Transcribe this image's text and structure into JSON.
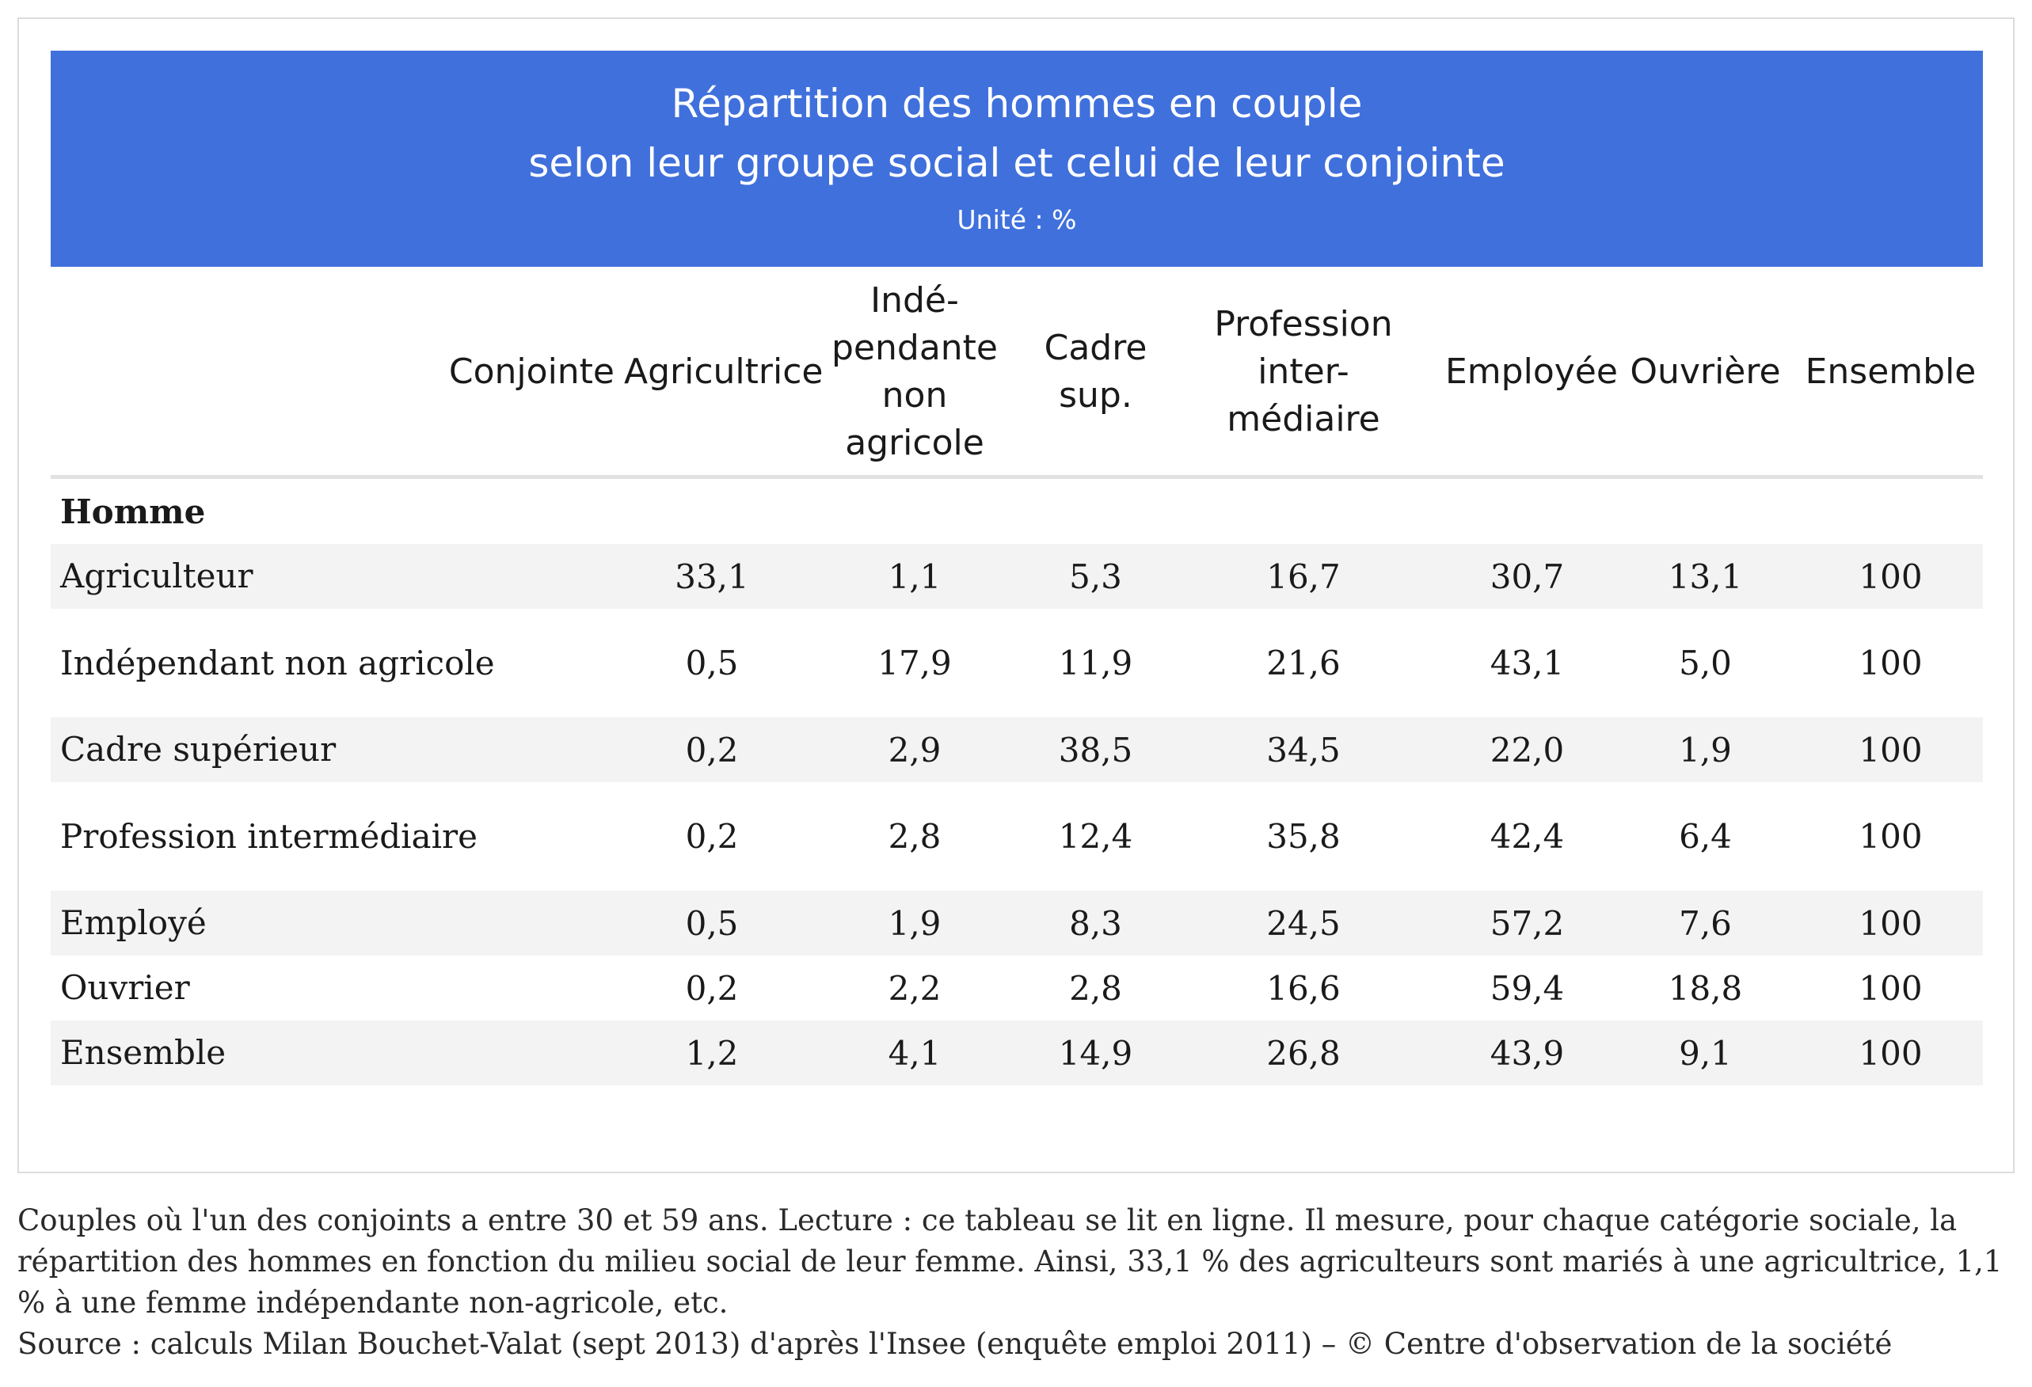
{
  "banner": {
    "title_line1": "Répartition des hommes en couple",
    "title_line2": "selon leur groupe social et celui de leur conjointe",
    "unit": "Unité : %"
  },
  "table": {
    "corner_label": "Conjointe",
    "columns": [
      "Agricultrice",
      "Indé-\npendante\nnon\nagricole",
      "Cadre\nsup.",
      "Profession\ninter-\nmédiaire",
      "Employée",
      "Ouvrière",
      "Ensemble"
    ],
    "group_label": "Homme",
    "rows": [
      {
        "label": "Agriculteur",
        "values": [
          "33,1",
          "1,1",
          "5,3",
          "16,7",
          "30,7",
          "13,1",
          "100"
        ]
      },
      {
        "label": "Indépendant non agricole",
        "values": [
          "0,5",
          "17,9",
          "11,9",
          "21,6",
          "43,1",
          "5,0",
          "100"
        ]
      },
      {
        "label": "Cadre supérieur",
        "values": [
          "0,2",
          "2,9",
          "38,5",
          "34,5",
          "22,0",
          "1,9",
          "100"
        ]
      },
      {
        "label": "Profession intermédiaire",
        "values": [
          "0,2",
          "2,8",
          "12,4",
          "35,8",
          "42,4",
          "6,4",
          "100"
        ]
      },
      {
        "label": "Employé",
        "values": [
          "0,5",
          "1,9",
          "8,3",
          "24,5",
          "57,2",
          "7,6",
          "100"
        ]
      },
      {
        "label": "Ouvrier",
        "values": [
          "0,2",
          "2,2",
          "2,8",
          "16,6",
          "59,4",
          "18,8",
          "100"
        ]
      },
      {
        "label": "Ensemble",
        "values": [
          "1,2",
          "4,1",
          "14,9",
          "26,8",
          "43,9",
          "9,1",
          "100"
        ]
      }
    ]
  },
  "notes": {
    "reading": "Couples où l'un des conjoints a entre 30 et 59 ans. Lecture : ce tableau se lit en ligne. Il mesure, pour chaque catégorie sociale, la répartition des hommes en fonction du milieu social de leur femme. Ainsi, 33,1 % des agriculteurs sont mariés à une agricultrice, 1,1 % à une femme indépendante non-agricole, etc.",
    "source": "Source : calculs Milan Bouchet-Valat (sept 2013) d'après l'Insee (enquête emploi 2011) – © Centre d'observation de la société"
  },
  "colors": {
    "banner_bg": "#4070dc",
    "row_shade": "#f3f3f3",
    "border": "#dcdcdc"
  }
}
